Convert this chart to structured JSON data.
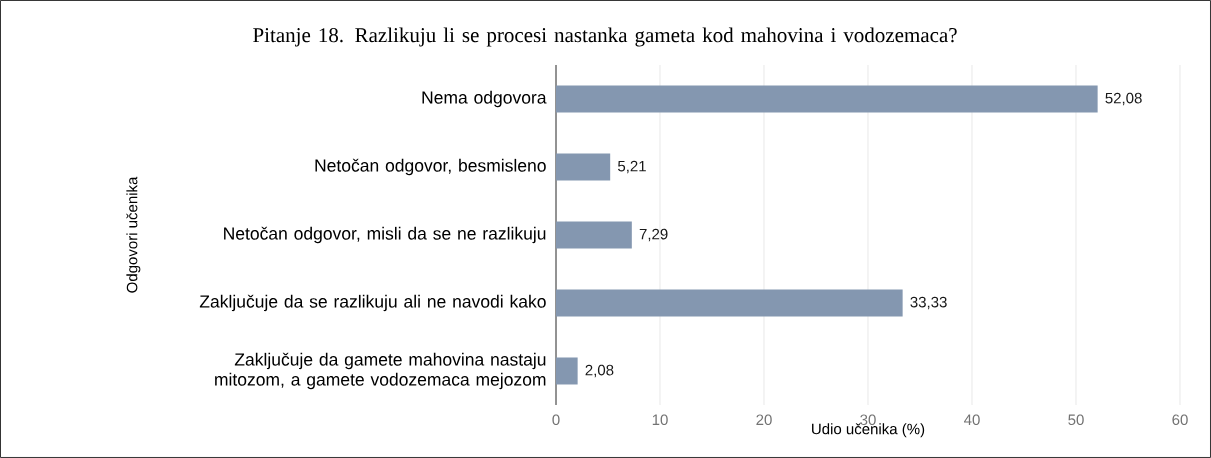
{
  "chart_data": {
    "type": "bar",
    "orientation": "horizontal",
    "title": "Pitanje 18. Razlikuju li se procesi nastanka gameta kod mahovina i vodozemaca?",
    "xlabel": "Udio učenika (%)",
    "ylabel": "Odgovori učenika",
    "categories": [
      "Nema odgovora",
      "Netočan odgovor, besmisleno",
      "Netočan odgovor, misli da se ne razlikuju",
      "Zaključuje da se razlikuju ali ne navodi kako",
      "Zaključuje da gamete mahovina nastaju mitozom, a gamete vodozemaca mejozom"
    ],
    "values": [
      52.08,
      5.21,
      7.29,
      33.33,
      2.08
    ],
    "value_labels": [
      "52,08",
      "5,21",
      "7,29",
      "33,33",
      "2,08"
    ],
    "color": "#8497b0",
    "xlim": [
      0,
      60
    ],
    "xticks": [
      0,
      10,
      20,
      30,
      40,
      50,
      60
    ],
    "grid": "x"
  }
}
